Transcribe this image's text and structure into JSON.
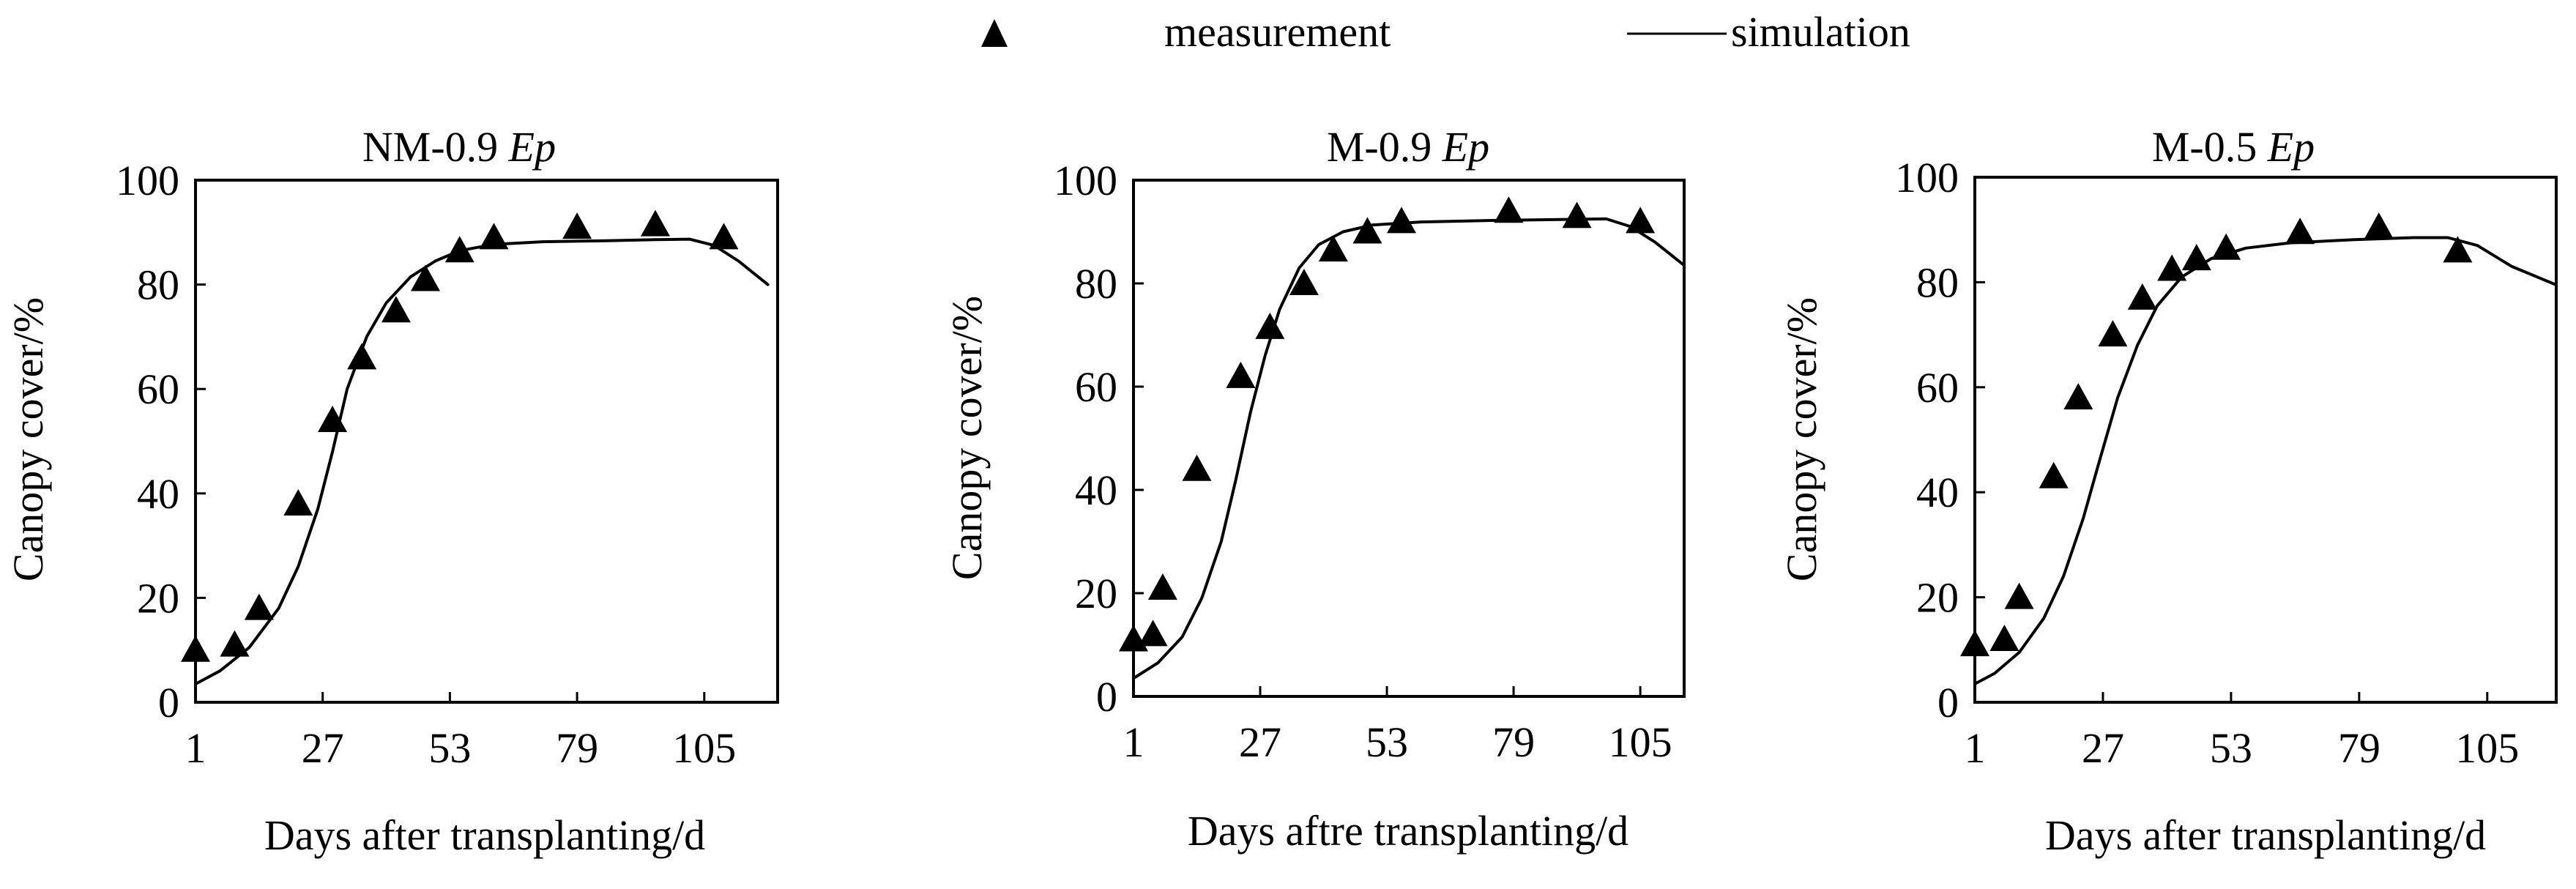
{
  "legend": {
    "measurement_label": "measurement",
    "simulation_label": "simulation",
    "measurement_marker": "filled-triangle",
    "simulation_marker": "solid-line"
  },
  "colors": {
    "ink": "#000000",
    "background": "#ffffff"
  },
  "chart_data": [
    {
      "type": "scatter",
      "title": "NM-0.9 ",
      "title_italic": "Ep",
      "xlabel": "Days after transplanting/d",
      "ylabel": "Canopy cover/%",
      "xlim": [
        1,
        120
      ],
      "ylim": [
        0,
        100
      ],
      "xticks": [
        1,
        27,
        53,
        79,
        105
      ],
      "yticks": [
        0,
        20,
        40,
        60,
        80,
        100
      ],
      "legend_position": "top-center",
      "series": [
        {
          "name": "measurement",
          "kind": "scatter",
          "points": [
            [
              1,
              10
            ],
            [
              9,
              11
            ],
            [
              14,
              18
            ],
            [
              22,
              38
            ],
            [
              29,
              54
            ],
            [
              35,
              66
            ],
            [
              42,
              75
            ],
            [
              48,
              81
            ],
            [
              55,
              86.5
            ],
            [
              62,
              89
            ],
            [
              79,
              91
            ],
            [
              95,
              91.5
            ],
            [
              109,
              89
            ]
          ]
        },
        {
          "name": "simulation",
          "kind": "line",
          "points": [
            [
              1,
              3.5
            ],
            [
              6,
              6
            ],
            [
              12,
              10.5
            ],
            [
              18,
              18
            ],
            [
              22,
              26
            ],
            [
              26,
              37
            ],
            [
              29,
              48
            ],
            [
              32,
              60
            ],
            [
              36,
              70
            ],
            [
              40,
              76.5
            ],
            [
              45,
              81.5
            ],
            [
              50,
              84.5
            ],
            [
              55,
              86.5
            ],
            [
              62,
              87.7
            ],
            [
              72,
              88.2
            ],
            [
              85,
              88.4
            ],
            [
              95,
              88.6
            ],
            [
              102,
              88.7
            ],
            [
              107,
              87.5
            ],
            [
              112,
              84.5
            ],
            [
              118,
              80
            ]
          ]
        }
      ]
    },
    {
      "type": "scatter",
      "title": "M-0.9 ",
      "title_italic": "Ep",
      "xlabel": "Days aftre transplanting/d",
      "ylabel": "Canopy cover/%",
      "xlim": [
        1,
        114
      ],
      "ylim": [
        0,
        100
      ],
      "xticks": [
        1,
        27,
        53,
        79,
        105
      ],
      "yticks": [
        0,
        20,
        40,
        60,
        80,
        100
      ],
      "legend_position": "top-center",
      "series": [
        {
          "name": "measurement",
          "kind": "scatter",
          "points": [
            [
              1,
              11
            ],
            [
              5,
              12
            ],
            [
              7,
              21
            ],
            [
              14,
              44
            ],
            [
              23,
              62
            ],
            [
              29,
              71.5
            ],
            [
              36,
              80
            ],
            [
              42,
              86.5
            ],
            [
              49,
              90
            ],
            [
              56,
              92
            ],
            [
              78,
              94
            ],
            [
              92,
              93
            ],
            [
              105,
              92
            ]
          ]
        },
        {
          "name": "simulation",
          "kind": "line",
          "points": [
            [
              1,
              3.5
            ],
            [
              6,
              6.5
            ],
            [
              11,
              11.5
            ],
            [
              15,
              19
            ],
            [
              19,
              30
            ],
            [
              22,
              42
            ],
            [
              25,
              55
            ],
            [
              28,
              66
            ],
            [
              31,
              75
            ],
            [
              35,
              83
            ],
            [
              39,
              87.5
            ],
            [
              44,
              90
            ],
            [
              50,
              91.3
            ],
            [
              60,
              91.9
            ],
            [
              75,
              92.2
            ],
            [
              90,
              92.4
            ],
            [
              98,
              92.5
            ],
            [
              103,
              91
            ],
            [
              108,
              88
            ],
            [
              114,
              83.5
            ]
          ]
        }
      ]
    },
    {
      "type": "scatter",
      "title": "M-0.5 ",
      "title_italic": "Ep",
      "xlabel": "Days after transplanting/d",
      "ylabel": "Canopy cover/%",
      "xlim": [
        1,
        119
      ],
      "ylim": [
        0,
        100
      ],
      "xticks": [
        1,
        27,
        53,
        79,
        105
      ],
      "yticks": [
        0,
        20,
        40,
        60,
        80,
        100
      ],
      "legend_position": "top-center",
      "series": [
        {
          "name": "measurement",
          "kind": "scatter",
          "points": [
            [
              1,
              11
            ],
            [
              7,
              12
            ],
            [
              10,
              20
            ],
            [
              17,
              43
            ],
            [
              22,
              58
            ],
            [
              29,
              70
            ],
            [
              35,
              77
            ],
            [
              41,
              82.5
            ],
            [
              46,
              84.5
            ],
            [
              52,
              86.5
            ],
            [
              67,
              89.5
            ],
            [
              83,
              90.5
            ],
            [
              99,
              86
            ]
          ]
        },
        {
          "name": "simulation",
          "kind": "line",
          "points": [
            [
              1,
              3.5
            ],
            [
              5,
              5.5
            ],
            [
              10,
              9.5
            ],
            [
              15,
              16
            ],
            [
              19,
              24
            ],
            [
              23,
              35
            ],
            [
              26,
              45
            ],
            [
              30,
              58
            ],
            [
              34,
              68
            ],
            [
              38,
              75.5
            ],
            [
              43,
              81
            ],
            [
              49,
              84.5
            ],
            [
              56,
              86.5
            ],
            [
              65,
              87.5
            ],
            [
              78,
              88.1
            ],
            [
              90,
              88.5
            ],
            [
              97,
              88.5
            ],
            [
              103,
              87
            ],
            [
              110,
              83
            ],
            [
              119,
              79.5
            ]
          ]
        }
      ]
    }
  ]
}
